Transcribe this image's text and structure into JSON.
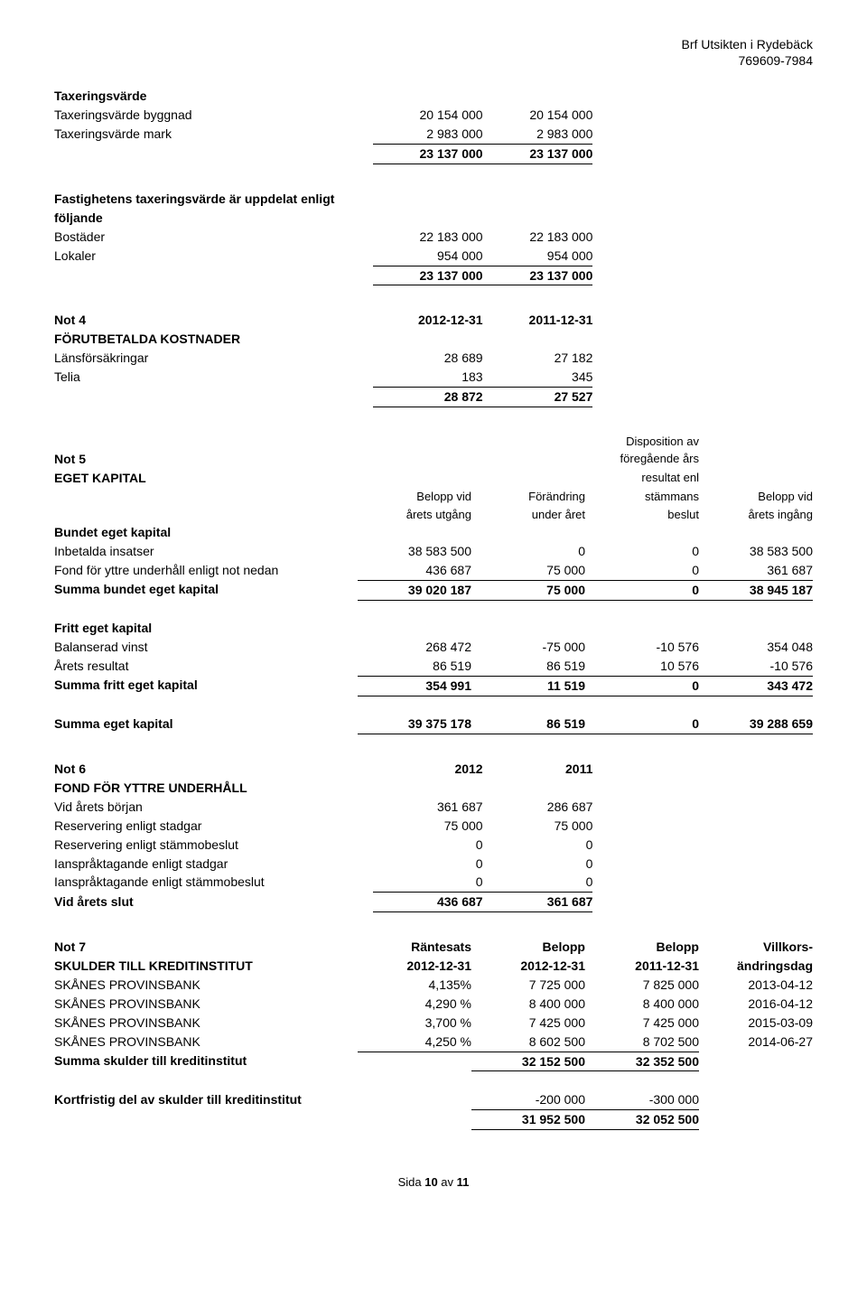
{
  "header": {
    "org": "Brf Utsikten i Rydebäck",
    "orgnr": "769609-7984"
  },
  "taxering": {
    "title": "Taxeringsvärde",
    "rows": [
      {
        "label": "Taxeringsvärde byggnad",
        "c1": "20 154 000",
        "c2": "20 154 000"
      },
      {
        "label": "Taxeringsvärde mark",
        "c1": "2 983 000",
        "c2": "2 983 000"
      }
    ],
    "total": {
      "c1": "23 137 000",
      "c2": "23 137 000"
    }
  },
  "fastighet": {
    "intro1": "Fastighetens taxeringsvärde är uppdelat enligt",
    "intro2": "följande",
    "rows": [
      {
        "label": "Bostäder",
        "c1": "22 183 000",
        "c2": "22 183 000"
      },
      {
        "label": "Lokaler",
        "c1": "954 000",
        "c2": "954 000"
      }
    ],
    "total": {
      "c1": "23 137 000",
      "c2": "23 137 000"
    }
  },
  "not4": {
    "title1": "Not 4",
    "title2": "FÖRUTBETALDA KOSTNADER",
    "h1": "2012-12-31",
    "h2": "2011-12-31",
    "rows": [
      {
        "label": "Länsförsäkringar",
        "c1": "28 689",
        "c2": "27 182"
      },
      {
        "label": "Telia",
        "c1": "183",
        "c2": "345"
      }
    ],
    "total": {
      "c1": "28 872",
      "c2": "27 527"
    }
  },
  "not5": {
    "title1": "Not 5",
    "title2": "EGET KAPITAL",
    "col_headers": {
      "c1a": "Belopp vid",
      "c1b": "årets utgång",
      "c2a": "Förändring",
      "c2b": "under året",
      "c3a": "Disposition av",
      "c3b": "föregående års",
      "c3c": "resultat enl",
      "c3d": "stämmans",
      "c3e": "beslut",
      "c4a": "Belopp vid",
      "c4b": "årets ingång"
    },
    "bundet_header": "Bundet eget kapital",
    "bundet_rows": [
      {
        "label": "Inbetalda insatser",
        "c1": "38 583 500",
        "c2": "0",
        "c3": "0",
        "c4": "38 583 500"
      },
      {
        "label": "Fond för yttre underhåll enligt not nedan",
        "c1": "436 687",
        "c2": "75 000",
        "c3": "0",
        "c4": "361 687"
      }
    ],
    "bundet_total": {
      "label": "Summa bundet eget kapital",
      "c1": "39 020 187",
      "c2": "75 000",
      "c3": "0",
      "c4": "38 945 187"
    },
    "fritt_header": "Fritt eget kapital",
    "fritt_rows": [
      {
        "label": "Balanserad vinst",
        "c1": "268 472",
        "c2": "-75 000",
        "c3": "-10 576",
        "c4": "354 048"
      },
      {
        "label": "Årets resultat",
        "c1": "86 519",
        "c2": "86 519",
        "c3": "10 576",
        "c4": "-10 576"
      }
    ],
    "fritt_total": {
      "label": "Summa fritt eget kapital",
      "c1": "354 991",
      "c2": "11 519",
      "c3": "0",
      "c4": "343 472"
    },
    "grand_total": {
      "label": "Summa eget kapital",
      "c1": "39 375 178",
      "c2": "86 519",
      "c3": "0",
      "c4": "39 288 659"
    }
  },
  "not6": {
    "title1": "Not 6",
    "title2": "FOND FÖR YTTRE UNDERHÅLL",
    "h1": "2012",
    "h2": "2011",
    "rows": [
      {
        "label": "Vid årets början",
        "c1": "361 687",
        "c2": "286 687"
      },
      {
        "label": "Reservering enligt stadgar",
        "c1": "75 000",
        "c2": "75 000"
      },
      {
        "label": "Reservering enligt stämmobeslut",
        "c1": "0",
        "c2": "0"
      },
      {
        "label": "Ianspråktagande enligt stadgar",
        "c1": "0",
        "c2": "0"
      },
      {
        "label": "Ianspråktagande enligt stämmobeslut",
        "c1": "0",
        "c2": "0"
      }
    ],
    "total": {
      "label": "Vid årets slut",
      "c1": "436 687",
      "c2": "361 687"
    }
  },
  "not7": {
    "title1": "Not 7",
    "title2": "SKULDER TILL KREDITINSTITUT",
    "h": {
      "c1a": "Räntesats",
      "c1b": "2012-12-31",
      "c2a": "Belopp",
      "c2b": "2012-12-31",
      "c3a": "Belopp",
      "c3b": "2011-12-31",
      "c4a": "Villkors-",
      "c4b": "ändringsdag"
    },
    "rows": [
      {
        "label": "SKÅNES PROVINSBANK",
        "c1": "4,135%",
        "c2": "7 725 000",
        "c3": "7 825 000",
        "c4": "2013-04-12"
      },
      {
        "label": "SKÅNES PROVINSBANK",
        "c1": "4,290 %",
        "c2": "8 400 000",
        "c3": "8 400 000",
        "c4": "2016-04-12"
      },
      {
        "label": "SKÅNES PROVINSBANK",
        "c1": "3,700 %",
        "c2": "7 425 000",
        "c3": "7 425 000",
        "c4": "2015-03-09"
      },
      {
        "label": "SKÅNES PROVINSBANK",
        "c1": "4,250 %",
        "c2": "8 602 500",
        "c3": "8 702 500",
        "c4": "2014-06-27"
      }
    ],
    "sum": {
      "label": "Summa skulder till kreditinstitut",
      "c2": "32 152 500",
      "c3": "32 352 500"
    },
    "kort": {
      "label": "Kortfristig del av skulder till kreditinstitut",
      "c2": "-200 000",
      "c3": "-300 000"
    },
    "final": {
      "c2": "31 952 500",
      "c3": "32 052 500"
    }
  },
  "footer": {
    "page_a": "Sida ",
    "page_b": "10",
    "page_c": " av ",
    "page_d": "11"
  }
}
